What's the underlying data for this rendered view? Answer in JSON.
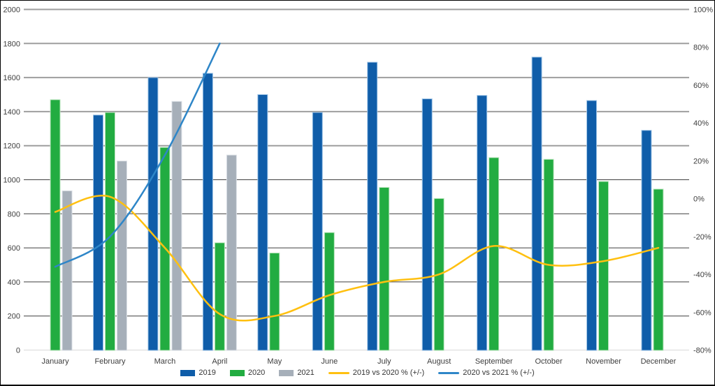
{
  "chart_data": {
    "type": "combo-bar-line",
    "title": "",
    "categories": [
      "January",
      "February",
      "March",
      "April",
      "May",
      "June",
      "July",
      "August",
      "September",
      "October",
      "November",
      "December"
    ],
    "bar_series": [
      {
        "name": "2019",
        "color": "#0F5DA9",
        "edge": "#9DC3E6",
        "values": [
          null,
          1380,
          1600,
          1625,
          1500,
          1395,
          1690,
          1475,
          1495,
          1720,
          1465,
          1290
        ]
      },
      {
        "name": "2020",
        "color": "#22AC41",
        "edge": "#BDE6C0",
        "values": [
          1470,
          1395,
          1190,
          630,
          570,
          690,
          955,
          890,
          1130,
          1120,
          990,
          945
        ]
      },
      {
        "name": "2021",
        "color": "#A6AFB9",
        "edge": "#DCE1E7",
        "values": [
          935,
          1110,
          1460,
          1145,
          null,
          null,
          null,
          null,
          null,
          null,
          null,
          null
        ]
      }
    ],
    "line_series": [
      {
        "name": "2019 vs 2020 % (+/-)",
        "color": "#FFC010",
        "axis": "right",
        "values_pct": [
          -7,
          1,
          -26,
          -61,
          -62,
          -51,
          -44,
          -40,
          -25,
          -35,
          -33,
          -26
        ]
      },
      {
        "name": "2020 vs 2021 % (+/-)",
        "color": "#2E86C8",
        "axis": "right",
        "values_pct": [
          -36,
          -20,
          23,
          82,
          null,
          null,
          null,
          null,
          null,
          null,
          null,
          null
        ]
      }
    ],
    "left_axis": {
      "min": 0,
      "max": 2000,
      "step": 200,
      "tick_labels": [
        "2000",
        "1800",
        "1600",
        "1400",
        "1200",
        "1000",
        "800",
        "600",
        "400",
        "200",
        "0"
      ]
    },
    "right_axis": {
      "min": -80,
      "max": 100,
      "step": 20,
      "tick_labels": [
        "100%",
        "80%",
        "60%",
        "40%",
        "20%",
        "0%",
        "-20%",
        "-40%",
        "-60%",
        "-80%"
      ]
    },
    "legend_position": "bottom",
    "grid": true
  },
  "style": {
    "grid_major_color": "#9E9E9E",
    "grid_minor_color": "#3F3F3F",
    "baseline_color": "#D9D9D9",
    "text_color": "#3d3d3d",
    "background": "#FFFFFF",
    "frame_border": "#000000"
  }
}
